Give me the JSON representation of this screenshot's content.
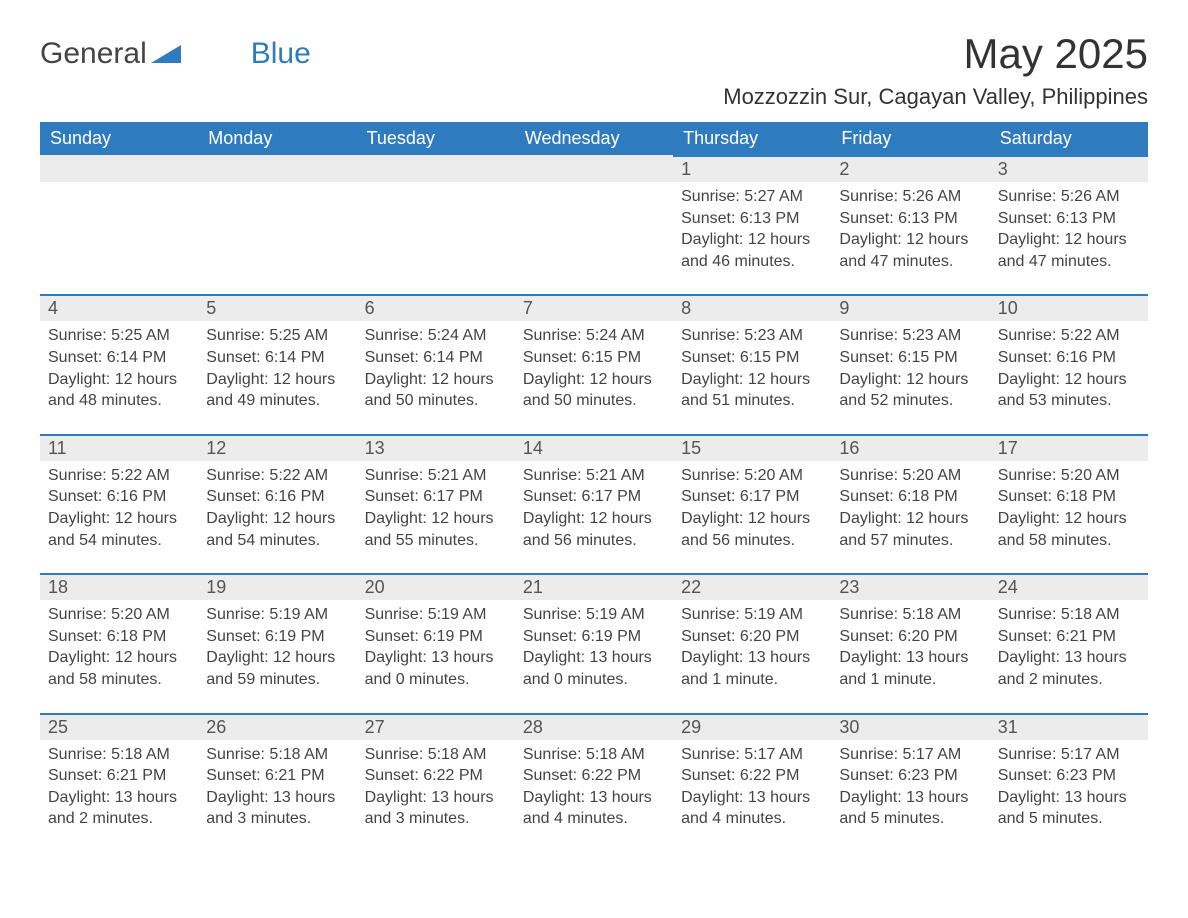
{
  "logo": {
    "text_general": "General",
    "text_blue": "Blue",
    "mark_color": "#2f7bbf"
  },
  "title": "May 2025",
  "location": "Mozzozzin Sur, Cagayan Valley, Philippines",
  "colors": {
    "header_bg": "#2f7bbf",
    "header_fg": "#ffffff",
    "daynum_bg": "#ececec",
    "daynum_border": "#2f7bbf",
    "text": "#444444",
    "bg": "#ffffff"
  },
  "day_headers": [
    "Sunday",
    "Monday",
    "Tuesday",
    "Wednesday",
    "Thursday",
    "Friday",
    "Saturday"
  ],
  "weeks": [
    [
      null,
      null,
      null,
      null,
      {
        "n": "1",
        "sunrise": "Sunrise: 5:27 AM",
        "sunset": "Sunset: 6:13 PM",
        "day1": "Daylight: 12 hours",
        "day2": "and 46 minutes."
      },
      {
        "n": "2",
        "sunrise": "Sunrise: 5:26 AM",
        "sunset": "Sunset: 6:13 PM",
        "day1": "Daylight: 12 hours",
        "day2": "and 47 minutes."
      },
      {
        "n": "3",
        "sunrise": "Sunrise: 5:26 AM",
        "sunset": "Sunset: 6:13 PM",
        "day1": "Daylight: 12 hours",
        "day2": "and 47 minutes."
      }
    ],
    [
      {
        "n": "4",
        "sunrise": "Sunrise: 5:25 AM",
        "sunset": "Sunset: 6:14 PM",
        "day1": "Daylight: 12 hours",
        "day2": "and 48 minutes."
      },
      {
        "n": "5",
        "sunrise": "Sunrise: 5:25 AM",
        "sunset": "Sunset: 6:14 PM",
        "day1": "Daylight: 12 hours",
        "day2": "and 49 minutes."
      },
      {
        "n": "6",
        "sunrise": "Sunrise: 5:24 AM",
        "sunset": "Sunset: 6:14 PM",
        "day1": "Daylight: 12 hours",
        "day2": "and 50 minutes."
      },
      {
        "n": "7",
        "sunrise": "Sunrise: 5:24 AM",
        "sunset": "Sunset: 6:15 PM",
        "day1": "Daylight: 12 hours",
        "day2": "and 50 minutes."
      },
      {
        "n": "8",
        "sunrise": "Sunrise: 5:23 AM",
        "sunset": "Sunset: 6:15 PM",
        "day1": "Daylight: 12 hours",
        "day2": "and 51 minutes."
      },
      {
        "n": "9",
        "sunrise": "Sunrise: 5:23 AM",
        "sunset": "Sunset: 6:15 PM",
        "day1": "Daylight: 12 hours",
        "day2": "and 52 minutes."
      },
      {
        "n": "10",
        "sunrise": "Sunrise: 5:22 AM",
        "sunset": "Sunset: 6:16 PM",
        "day1": "Daylight: 12 hours",
        "day2": "and 53 minutes."
      }
    ],
    [
      {
        "n": "11",
        "sunrise": "Sunrise: 5:22 AM",
        "sunset": "Sunset: 6:16 PM",
        "day1": "Daylight: 12 hours",
        "day2": "and 54 minutes."
      },
      {
        "n": "12",
        "sunrise": "Sunrise: 5:22 AM",
        "sunset": "Sunset: 6:16 PM",
        "day1": "Daylight: 12 hours",
        "day2": "and 54 minutes."
      },
      {
        "n": "13",
        "sunrise": "Sunrise: 5:21 AM",
        "sunset": "Sunset: 6:17 PM",
        "day1": "Daylight: 12 hours",
        "day2": "and 55 minutes."
      },
      {
        "n": "14",
        "sunrise": "Sunrise: 5:21 AM",
        "sunset": "Sunset: 6:17 PM",
        "day1": "Daylight: 12 hours",
        "day2": "and 56 minutes."
      },
      {
        "n": "15",
        "sunrise": "Sunrise: 5:20 AM",
        "sunset": "Sunset: 6:17 PM",
        "day1": "Daylight: 12 hours",
        "day2": "and 56 minutes."
      },
      {
        "n": "16",
        "sunrise": "Sunrise: 5:20 AM",
        "sunset": "Sunset: 6:18 PM",
        "day1": "Daylight: 12 hours",
        "day2": "and 57 minutes."
      },
      {
        "n": "17",
        "sunrise": "Sunrise: 5:20 AM",
        "sunset": "Sunset: 6:18 PM",
        "day1": "Daylight: 12 hours",
        "day2": "and 58 minutes."
      }
    ],
    [
      {
        "n": "18",
        "sunrise": "Sunrise: 5:20 AM",
        "sunset": "Sunset: 6:18 PM",
        "day1": "Daylight: 12 hours",
        "day2": "and 58 minutes."
      },
      {
        "n": "19",
        "sunrise": "Sunrise: 5:19 AM",
        "sunset": "Sunset: 6:19 PM",
        "day1": "Daylight: 12 hours",
        "day2": "and 59 minutes."
      },
      {
        "n": "20",
        "sunrise": "Sunrise: 5:19 AM",
        "sunset": "Sunset: 6:19 PM",
        "day1": "Daylight: 13 hours",
        "day2": "and 0 minutes."
      },
      {
        "n": "21",
        "sunrise": "Sunrise: 5:19 AM",
        "sunset": "Sunset: 6:19 PM",
        "day1": "Daylight: 13 hours",
        "day2": "and 0 minutes."
      },
      {
        "n": "22",
        "sunrise": "Sunrise: 5:19 AM",
        "sunset": "Sunset: 6:20 PM",
        "day1": "Daylight: 13 hours",
        "day2": "and 1 minute."
      },
      {
        "n": "23",
        "sunrise": "Sunrise: 5:18 AM",
        "sunset": "Sunset: 6:20 PM",
        "day1": "Daylight: 13 hours",
        "day2": "and 1 minute."
      },
      {
        "n": "24",
        "sunrise": "Sunrise: 5:18 AM",
        "sunset": "Sunset: 6:21 PM",
        "day1": "Daylight: 13 hours",
        "day2": "and 2 minutes."
      }
    ],
    [
      {
        "n": "25",
        "sunrise": "Sunrise: 5:18 AM",
        "sunset": "Sunset: 6:21 PM",
        "day1": "Daylight: 13 hours",
        "day2": "and 2 minutes."
      },
      {
        "n": "26",
        "sunrise": "Sunrise: 5:18 AM",
        "sunset": "Sunset: 6:21 PM",
        "day1": "Daylight: 13 hours",
        "day2": "and 3 minutes."
      },
      {
        "n": "27",
        "sunrise": "Sunrise: 5:18 AM",
        "sunset": "Sunset: 6:22 PM",
        "day1": "Daylight: 13 hours",
        "day2": "and 3 minutes."
      },
      {
        "n": "28",
        "sunrise": "Sunrise: 5:18 AM",
        "sunset": "Sunset: 6:22 PM",
        "day1": "Daylight: 13 hours",
        "day2": "and 4 minutes."
      },
      {
        "n": "29",
        "sunrise": "Sunrise: 5:17 AM",
        "sunset": "Sunset: 6:22 PM",
        "day1": "Daylight: 13 hours",
        "day2": "and 4 minutes."
      },
      {
        "n": "30",
        "sunrise": "Sunrise: 5:17 AM",
        "sunset": "Sunset: 6:23 PM",
        "day1": "Daylight: 13 hours",
        "day2": "and 5 minutes."
      },
      {
        "n": "31",
        "sunrise": "Sunrise: 5:17 AM",
        "sunset": "Sunset: 6:23 PM",
        "day1": "Daylight: 13 hours",
        "day2": "and 5 minutes."
      }
    ]
  ]
}
